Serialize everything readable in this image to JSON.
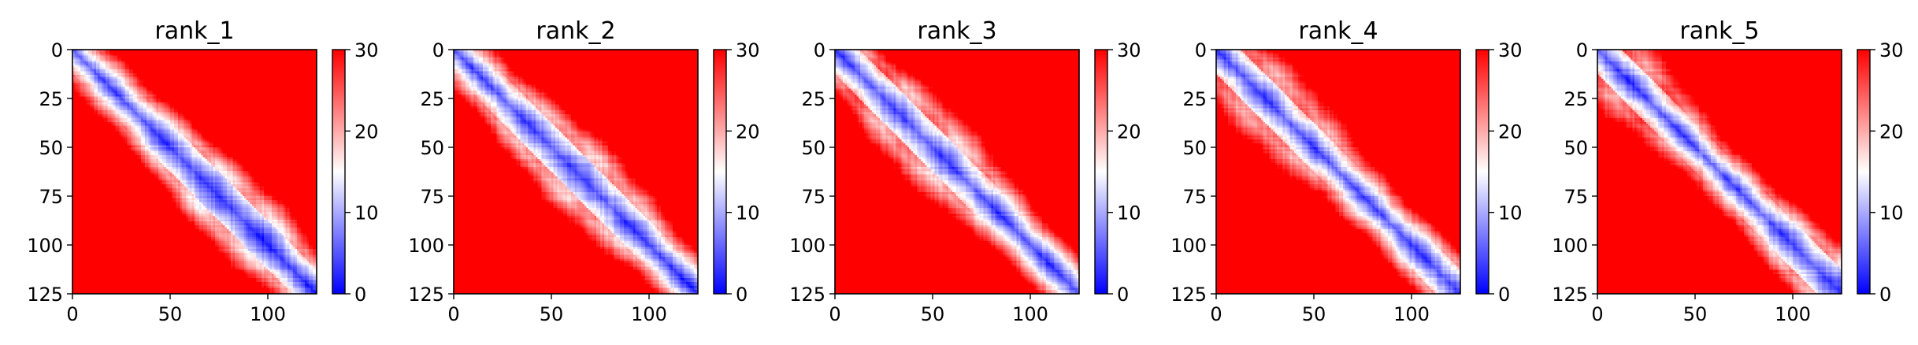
{
  "figure": {
    "colormap": "bwr",
    "colors": {
      "low": "#0000ff",
      "mid": "#ffffff",
      "high": "#ff0000"
    }
  },
  "chart_data": [
    {
      "type": "heatmap",
      "title": "rank_1",
      "matrix_size": 125,
      "xlim": [
        0,
        125
      ],
      "ylim": [
        125,
        0
      ],
      "xticks": [
        0,
        50,
        100
      ],
      "yticks": [
        0,
        25,
        50,
        75,
        100,
        125
      ],
      "colorbar": {
        "vmin": 0,
        "vmax": 30,
        "ticks": [
          0,
          10,
          20,
          30
        ]
      }
    },
    {
      "type": "heatmap",
      "title": "rank_2",
      "matrix_size": 125,
      "xlim": [
        0,
        125
      ],
      "ylim": [
        125,
        0
      ],
      "xticks": [
        0,
        50,
        100
      ],
      "yticks": [
        0,
        25,
        50,
        75,
        100,
        125
      ],
      "colorbar": {
        "vmin": 0,
        "vmax": 30,
        "ticks": [
          0,
          10,
          20,
          30
        ]
      }
    },
    {
      "type": "heatmap",
      "title": "rank_3",
      "matrix_size": 125,
      "xlim": [
        0,
        125
      ],
      "ylim": [
        125,
        0
      ],
      "xticks": [
        0,
        50,
        100
      ],
      "yticks": [
        0,
        25,
        50,
        75,
        100,
        125
      ],
      "colorbar": {
        "vmin": 0,
        "vmax": 30,
        "ticks": [
          0,
          10,
          20,
          30
        ]
      }
    },
    {
      "type": "heatmap",
      "title": "rank_4",
      "matrix_size": 125,
      "xlim": [
        0,
        125
      ],
      "ylim": [
        125,
        0
      ],
      "xticks": [
        0,
        50,
        100
      ],
      "yticks": [
        0,
        25,
        50,
        75,
        100,
        125
      ],
      "colorbar": {
        "vmin": 0,
        "vmax": 30,
        "ticks": [
          0,
          10,
          20,
          30
        ]
      }
    },
    {
      "type": "heatmap",
      "title": "rank_5",
      "matrix_size": 125,
      "xlim": [
        0,
        125
      ],
      "ylim": [
        125,
        0
      ],
      "xticks": [
        0,
        50,
        100
      ],
      "yticks": [
        0,
        25,
        50,
        75,
        100,
        125
      ],
      "colorbar": {
        "vmin": 0,
        "vmax": 30,
        "ticks": [
          0,
          10,
          20,
          30
        ]
      }
    }
  ]
}
